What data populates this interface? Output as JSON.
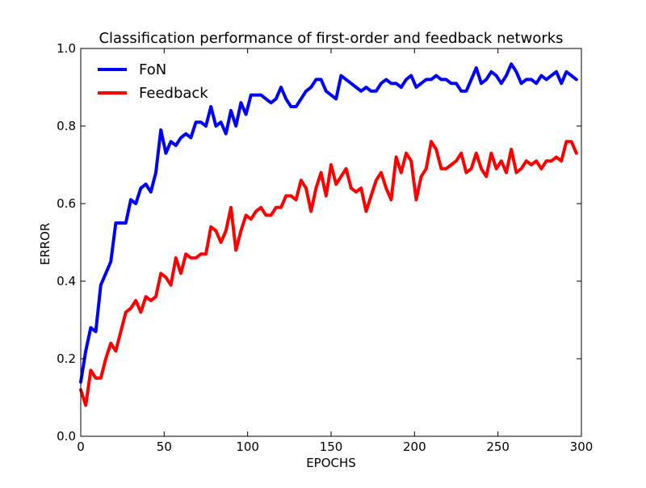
{
  "chart_data": {
    "type": "line",
    "title": "Classification performance of first-order and feedback networks",
    "xlabel": "EPOCHS",
    "ylabel": "ERROR",
    "xlim": [
      0,
      300
    ],
    "ylim": [
      0.0,
      1.0
    ],
    "xticks": [
      0,
      50,
      100,
      150,
      200,
      250,
      300
    ],
    "xtick_labels": [
      "0",
      "50",
      "100",
      "150",
      "200",
      "250",
      "300"
    ],
    "yticks": [
      0.0,
      0.2,
      0.4,
      0.6,
      0.8,
      1.0
    ],
    "ytick_labels": [
      "0.0",
      "0.2",
      "0.4",
      "0.6",
      "0.8",
      "1.0"
    ],
    "grid": false,
    "legend": "top-left",
    "x": [
      0,
      3,
      6,
      9,
      12,
      15,
      18,
      21,
      24,
      27,
      30,
      33,
      36,
      39,
      42,
      45,
      48,
      51,
      54,
      57,
      60,
      63,
      66,
      69,
      72,
      75,
      78,
      81,
      84,
      87,
      90,
      93,
      96,
      99,
      102,
      105,
      108,
      111,
      114,
      117,
      120,
      123,
      126,
      129,
      132,
      135,
      138,
      141,
      144,
      147,
      150,
      153,
      156,
      159,
      162,
      165,
      168,
      171,
      174,
      177,
      180,
      183,
      186,
      189,
      192,
      195,
      198,
      201,
      204,
      207,
      210,
      213,
      216,
      219,
      222,
      225,
      228,
      231,
      234,
      237,
      240,
      243,
      246,
      249,
      252,
      255,
      258,
      261,
      264,
      267,
      270,
      273,
      276,
      279,
      282,
      285,
      288,
      291,
      294,
      297
    ],
    "series": [
      {
        "name": "FoN",
        "color": "#0000ff",
        "values": [
          0.14,
          0.22,
          0.28,
          0.27,
          0.39,
          0.42,
          0.45,
          0.55,
          0.55,
          0.55,
          0.61,
          0.6,
          0.64,
          0.65,
          0.63,
          0.68,
          0.79,
          0.73,
          0.76,
          0.75,
          0.77,
          0.78,
          0.77,
          0.81,
          0.81,
          0.8,
          0.85,
          0.8,
          0.81,
          0.78,
          0.84,
          0.8,
          0.86,
          0.83,
          0.88,
          0.88,
          0.88,
          0.87,
          0.86,
          0.87,
          0.9,
          0.87,
          0.85,
          0.85,
          0.87,
          0.89,
          0.9,
          0.92,
          0.92,
          0.89,
          0.88,
          0.87,
          0.93,
          0.92,
          0.91,
          0.9,
          0.89,
          0.9,
          0.89,
          0.89,
          0.91,
          0.92,
          0.91,
          0.91,
          0.9,
          0.92,
          0.93,
          0.9,
          0.91,
          0.92,
          0.92,
          0.93,
          0.92,
          0.92,
          0.91,
          0.91,
          0.89,
          0.89,
          0.92,
          0.95,
          0.91,
          0.92,
          0.94,
          0.93,
          0.91,
          0.93,
          0.96,
          0.94,
          0.91,
          0.92,
          0.92,
          0.91,
          0.93,
          0.92,
          0.93,
          0.94,
          0.91,
          0.94,
          0.93,
          0.92
        ]
      },
      {
        "name": "Feedback",
        "color": "#ff0000",
        "values": [
          0.12,
          0.08,
          0.17,
          0.15,
          0.15,
          0.2,
          0.24,
          0.22,
          0.27,
          0.32,
          0.33,
          0.35,
          0.32,
          0.36,
          0.35,
          0.36,
          0.42,
          0.41,
          0.39,
          0.46,
          0.42,
          0.47,
          0.46,
          0.46,
          0.47,
          0.47,
          0.54,
          0.53,
          0.5,
          0.53,
          0.59,
          0.48,
          0.53,
          0.57,
          0.56,
          0.58,
          0.59,
          0.57,
          0.57,
          0.59,
          0.59,
          0.62,
          0.62,
          0.61,
          0.66,
          0.64,
          0.58,
          0.64,
          0.68,
          0.62,
          0.7,
          0.65,
          0.67,
          0.69,
          0.64,
          0.63,
          0.64,
          0.58,
          0.62,
          0.66,
          0.68,
          0.64,
          0.61,
          0.72,
          0.68,
          0.73,
          0.71,
          0.61,
          0.67,
          0.69,
          0.76,
          0.74,
          0.69,
          0.69,
          0.7,
          0.71,
          0.73,
          0.68,
          0.69,
          0.73,
          0.69,
          0.67,
          0.73,
          0.69,
          0.71,
          0.68,
          0.74,
          0.68,
          0.69,
          0.71,
          0.7,
          0.71,
          0.69,
          0.71,
          0.71,
          0.72,
          0.71,
          0.76,
          0.76,
          0.73
        ]
      }
    ]
  }
}
